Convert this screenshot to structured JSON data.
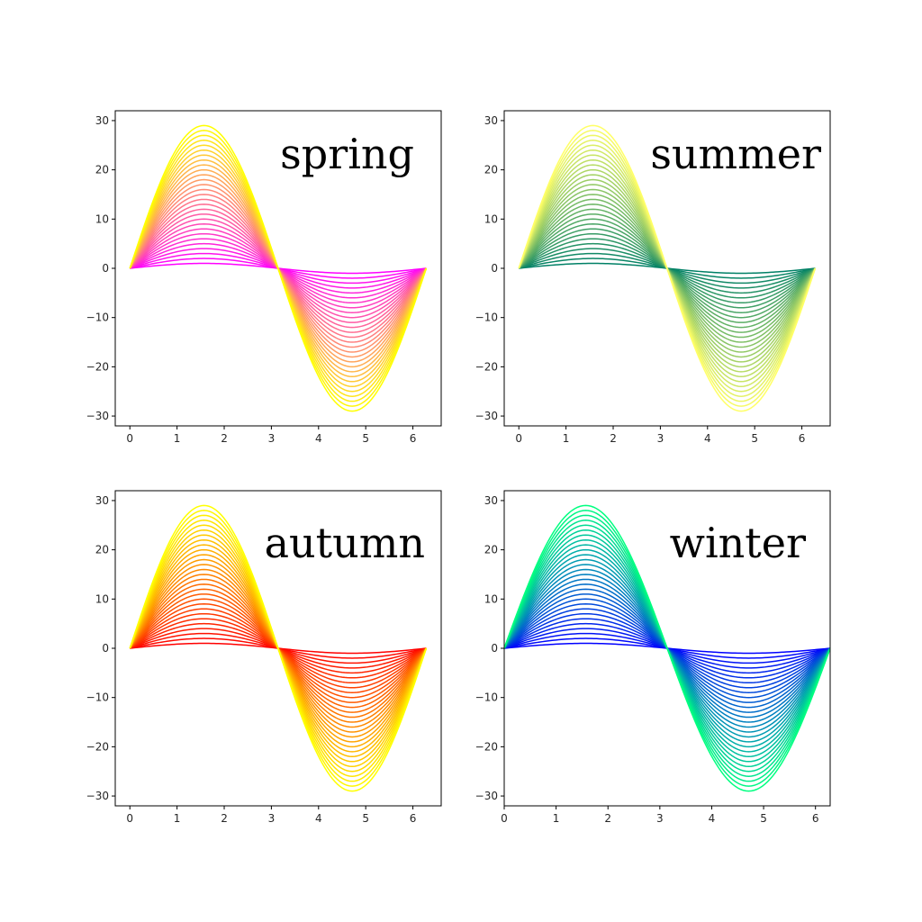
{
  "chart_data": [
    {
      "type": "line",
      "title": "spring",
      "colormap_name": "spring",
      "color_low": "#ff00ff",
      "color_high": "#ffff00",
      "function": "y = A * sin(x)",
      "amplitudes": [
        1,
        2,
        3,
        4,
        5,
        6,
        7,
        8,
        9,
        10,
        11,
        12,
        13,
        14,
        15,
        16,
        17,
        18,
        19,
        20,
        21,
        22,
        23,
        24,
        25,
        26,
        27,
        28,
        29
      ],
      "x_range": [
        0,
        6.283
      ],
      "xlim": [
        -0.31,
        6.6
      ],
      "ylim": [
        -32,
        32
      ],
      "xticks": [
        0,
        1,
        2,
        3,
        4,
        5,
        6
      ],
      "yticks": [
        30,
        20,
        10,
        0,
        -10,
        -20,
        -30
      ],
      "xtick_labels": [
        "0",
        "1",
        "2",
        "3",
        "4",
        "5",
        "6"
      ],
      "ytick_labels": [
        "30",
        "20",
        "10",
        "0",
        "−10",
        "−20",
        "−30"
      ],
      "grid": false,
      "legend": "none"
    },
    {
      "type": "line",
      "title": "summer",
      "colormap_name": "summer",
      "color_low": "#008066",
      "color_high": "#ffff66",
      "function": "y = A * sin(x)",
      "amplitudes": [
        1,
        2,
        3,
        4,
        5,
        6,
        7,
        8,
        9,
        10,
        11,
        12,
        13,
        14,
        15,
        16,
        17,
        18,
        19,
        20,
        21,
        22,
        23,
        24,
        25,
        26,
        27,
        28,
        29
      ],
      "x_range": [
        0,
        6.283
      ],
      "xlim": [
        -0.31,
        6.6
      ],
      "ylim": [
        -32,
        32
      ],
      "xticks": [
        0,
        1,
        2,
        3,
        4,
        5,
        6
      ],
      "yticks": [
        30,
        20,
        10,
        0,
        -10,
        -20,
        -30
      ],
      "xtick_labels": [
        "0",
        "1",
        "2",
        "3",
        "4",
        "5",
        "6"
      ],
      "ytick_labels": [
        "30",
        "20",
        "10",
        "0",
        "−10",
        "−20",
        "−30"
      ],
      "grid": false,
      "legend": "none"
    },
    {
      "type": "line",
      "title": "autumn",
      "colormap_name": "autumn",
      "color_low": "#ff0000",
      "color_high": "#ffff00",
      "function": "y = A * sin(x)",
      "amplitudes": [
        1,
        2,
        3,
        4,
        5,
        6,
        7,
        8,
        9,
        10,
        11,
        12,
        13,
        14,
        15,
        16,
        17,
        18,
        19,
        20,
        21,
        22,
        23,
        24,
        25,
        26,
        27,
        28,
        29
      ],
      "x_range": [
        0,
        6.283
      ],
      "xlim": [
        -0.31,
        6.6
      ],
      "ylim": [
        -32,
        32
      ],
      "xticks": [
        0,
        1,
        2,
        3,
        4,
        5,
        6
      ],
      "yticks": [
        30,
        20,
        10,
        0,
        -10,
        -20,
        -30
      ],
      "xtick_labels": [
        "0",
        "1",
        "2",
        "3",
        "4",
        "5",
        "6"
      ],
      "ytick_labels": [
        "30",
        "20",
        "10",
        "0",
        "−10",
        "−20",
        "−30"
      ],
      "grid": false,
      "legend": "none"
    },
    {
      "type": "line",
      "title": "winter",
      "colormap_name": "winter",
      "color_low": "#0000ff",
      "color_high": "#00ff80",
      "function": "y = A * sin(x)",
      "amplitudes": [
        1,
        2,
        3,
        4,
        5,
        6,
        7,
        8,
        9,
        10,
        11,
        12,
        13,
        14,
        15,
        16,
        17,
        18,
        19,
        20,
        21,
        22,
        23,
        24,
        25,
        26,
        27,
        28,
        29
      ],
      "x_range": [
        0,
        6.283
      ],
      "xlim": [
        0,
        6.283
      ],
      "ylim": [
        -32,
        32
      ],
      "xticks": [
        0,
        1,
        2,
        3,
        4,
        5,
        6
      ],
      "yticks": [
        30,
        20,
        10,
        0,
        -10,
        -20,
        -30
      ],
      "xtick_labels": [
        "0",
        "1",
        "2",
        "3",
        "4",
        "5",
        "6"
      ],
      "ytick_labels": [
        "30",
        "20",
        "10",
        "0",
        "−10",
        "−20",
        "−30"
      ],
      "grid": false,
      "legend": "none"
    }
  ]
}
